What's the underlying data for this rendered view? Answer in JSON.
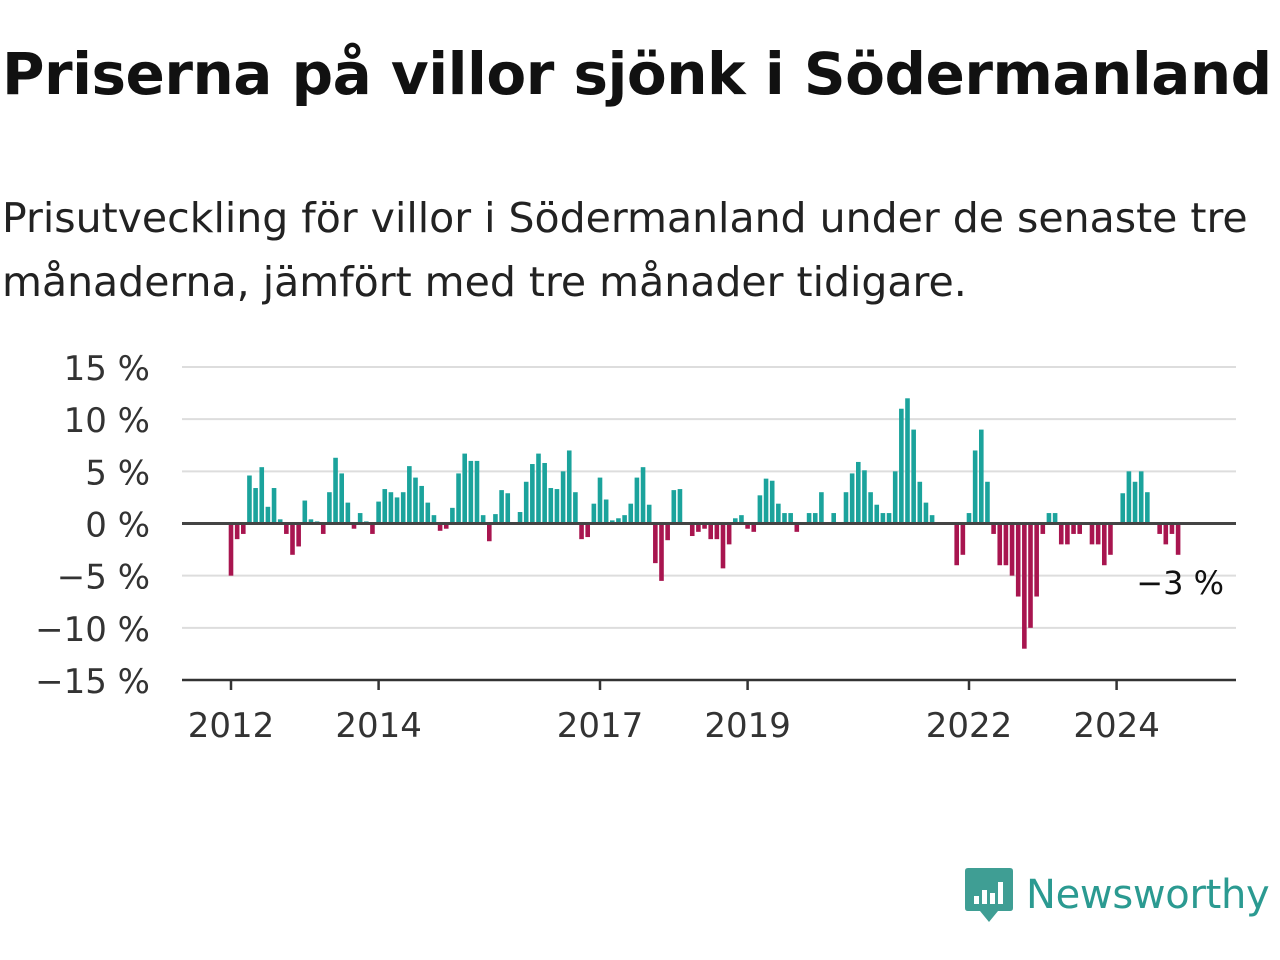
{
  "title": "Priserna på villor sjönk i Södermanland",
  "subtitle": "Prisutveckling för villor i Södermanland under de senaste tre månaderna, jämfört med tre månader tidigare.",
  "brand": {
    "name": "Newsworthy",
    "icon": "newsworthy-logo-icon",
    "color": "#3f9e94"
  },
  "colors": {
    "positive": "#1ba39c",
    "negative": "#a8154f",
    "grid": "#dddddd",
    "axis": "#333333",
    "zero_line": "#444444"
  },
  "chart_data": {
    "type": "bar",
    "title": "Priserna på villor sjönk i Södermanland",
    "xlabel": "",
    "ylabel": "",
    "ylim": [
      -15,
      15
    ],
    "grid": true,
    "legend": "none",
    "y_ticks": [
      {
        "value": 15,
        "label": "15 %"
      },
      {
        "value": 10,
        "label": "10 %"
      },
      {
        "value": 5,
        "label": "5 %"
      },
      {
        "value": 0,
        "label": "0 %"
      },
      {
        "value": -5,
        "label": "−5 %"
      },
      {
        "value": -10,
        "label": "−10 %"
      },
      {
        "value": -15,
        "label": "−15 %"
      }
    ],
    "x_ticks": [
      {
        "date": "2012-01",
        "label": "2012"
      },
      {
        "date": "2014-01",
        "label": "2014"
      },
      {
        "date": "2017-01",
        "label": "2017"
      },
      {
        "date": "2019-01",
        "label": "2019"
      },
      {
        "date": "2022-01",
        "label": "2022"
      },
      {
        "date": "2024-01",
        "label": "2024"
      }
    ],
    "series": [
      {
        "unit": "%",
        "start": "2012-01",
        "frequency": "monthly",
        "values": [
          -5.0,
          -1.5,
          -1.0,
          4.6,
          3.4,
          5.4,
          1.6,
          3.4,
          0.4,
          -1.0,
          -3.0,
          -2.2,
          2.2,
          0.4,
          0.2,
          -1.0,
          3.0,
          6.3,
          4.8,
          2.0,
          -0.5,
          1.0,
          0.2,
          -1.0,
          2.1,
          3.3,
          3.0,
          2.5,
          3.0,
          5.5,
          4.4,
          3.6,
          2.0,
          0.8,
          -0.7,
          -0.5,
          1.5,
          4.8,
          6.7,
          6.0,
          6.0,
          0.8,
          -1.7,
          0.9,
          3.2,
          2.9,
          0.1,
          1.1,
          4.0,
          5.7,
          6.7,
          5.8,
          3.4,
          3.3,
          5.0,
          7.0,
          3.0,
          -1.5,
          -1.3,
          1.9,
          4.4,
          2.3,
          0.3,
          0.5,
          0.8,
          1.9,
          4.4,
          5.4,
          1.8,
          -3.8,
          -5.5,
          -1.6,
          3.2,
          3.3,
          0.1,
          -1.2,
          -0.8,
          -0.5,
          -1.5,
          -1.5,
          -4.3,
          -2.0,
          0.5,
          0.8,
          -0.5,
          -0.8,
          2.7,
          4.3,
          4.1,
          1.9,
          1.0,
          1.0,
          -0.8,
          0.0,
          1.0,
          1.0,
          3.0,
          0.0,
          1.0,
          0.0,
          3.0,
          4.8,
          5.9,
          5.1,
          3.0,
          1.8,
          1.0,
          1.0,
          5.0,
          11.0,
          12.0,
          9.0,
          4.0,
          2.0,
          0.8,
          0.0,
          0.0,
          0.0,
          -4.0,
          -3.0,
          1.0,
          7.0,
          9.0,
          4.0,
          -1.0,
          -4.0,
          -4.0,
          -5.0,
          -7.0,
          -12.0,
          -10.0,
          -7.0,
          -1.0,
          1.0,
          1.0,
          -2.0,
          -2.0,
          -1.0,
          -1.0,
          0.0,
          -2.0,
          -2.0,
          -4.0,
          -3.0,
          0.0,
          2.9,
          5.0,
          4.0,
          5.0,
          3.0,
          0.0,
          -1.0,
          -2.0,
          -1.0,
          -3.0
        ]
      }
    ],
    "annotations": [
      {
        "text": "−3 %",
        "target": "last_value"
      }
    ]
  }
}
